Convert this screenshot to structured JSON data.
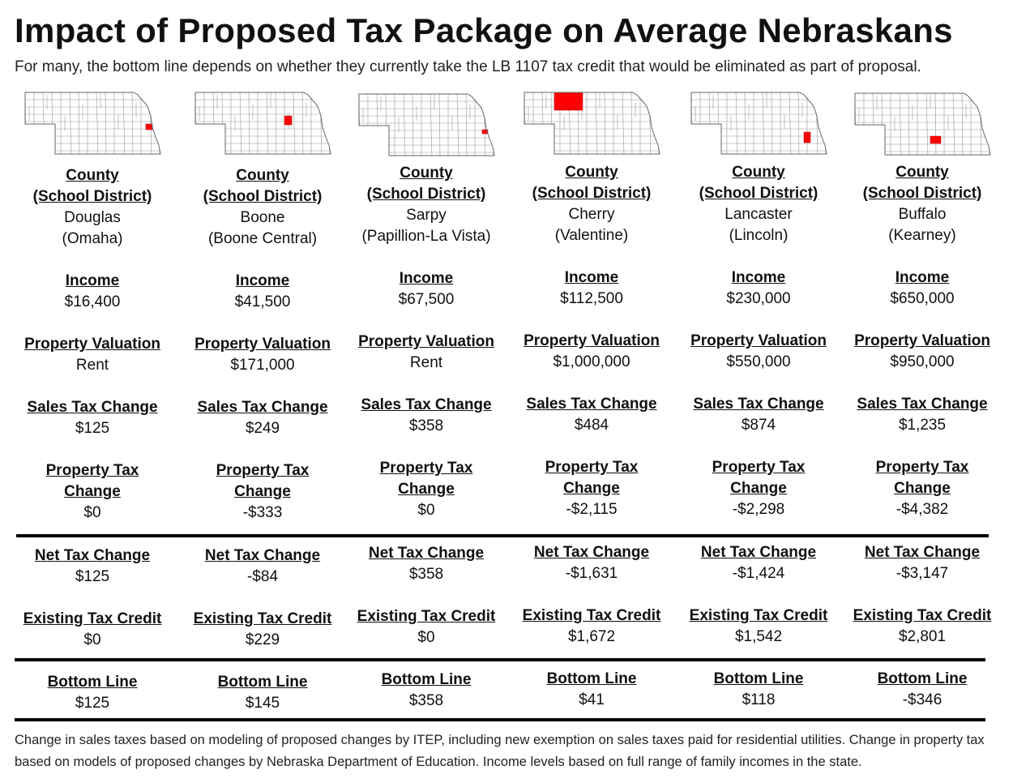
{
  "title": "Impact of Proposed Tax Package on Average Nebraskans",
  "subtitle": "For many, the bottom line depends on whether they currently take the LB 1107 tax credit that would be eliminated as part of proposal.",
  "labels": {
    "county": "County",
    "district": "(School District)",
    "income": "Income",
    "valuation": "Property Valuation",
    "sales": "Sales Tax Change",
    "prop1": "Property Tax",
    "prop2": "Change",
    "net": "Net Tax Change",
    "credit": "Existing Tax Credit",
    "bottom": "Bottom Line"
  },
  "columns": [
    {
      "county": "Douglas",
      "district": "(Omaha)",
      "income": "$16,400",
      "valuation": "Rent",
      "sales": "$125",
      "property": "$0",
      "net": "$125",
      "credit": "$0",
      "bottom": "$125"
    },
    {
      "county": "Boone",
      "district": "(Boone Central)",
      "income": "$41,500",
      "valuation": "$171,000",
      "sales": "$249",
      "property": "-$333",
      "net": "-$84",
      "credit": "$229",
      "bottom": "$145"
    },
    {
      "county": "Sarpy",
      "district": "(Papillion-La Vista)",
      "income": "$67,500",
      "valuation": "Rent",
      "sales": "$358",
      "property": "$0",
      "net": "$358",
      "credit": "$0",
      "bottom": "$358"
    },
    {
      "county": "Cherry",
      "district": "(Valentine)",
      "income": "$112,500",
      "valuation": "$1,000,000",
      "sales": "$484",
      "property": "-$2,115",
      "net": "-$1,631",
      "credit": "$1,672",
      "bottom": "$41"
    },
    {
      "county": "Lancaster",
      "district": "(Lincoln)",
      "income": "$230,000",
      "valuation": "$550,000",
      "sales": "$874",
      "property": "-$2,298",
      "net": "-$1,424",
      "credit": "$1,542",
      "bottom": "$118"
    },
    {
      "county": "Buffalo",
      "district": "(Kearney)",
      "income": "$650,000",
      "valuation": "$950,000",
      "sales": "$1,235",
      "property": "-$4,382",
      "net": "-$3,147",
      "credit": "$2,801",
      "bottom": "-$346"
    }
  ],
  "highlight_color": "#ff0000",
  "footer": "Change in sales taxes based on modeling of proposed changes by ITEP, including new exemption on sales taxes paid for residential utilities. Change in property tax based on models of proposed changes by Nebraska Department of Education. Income levels based on full range of family incomes in the state."
}
